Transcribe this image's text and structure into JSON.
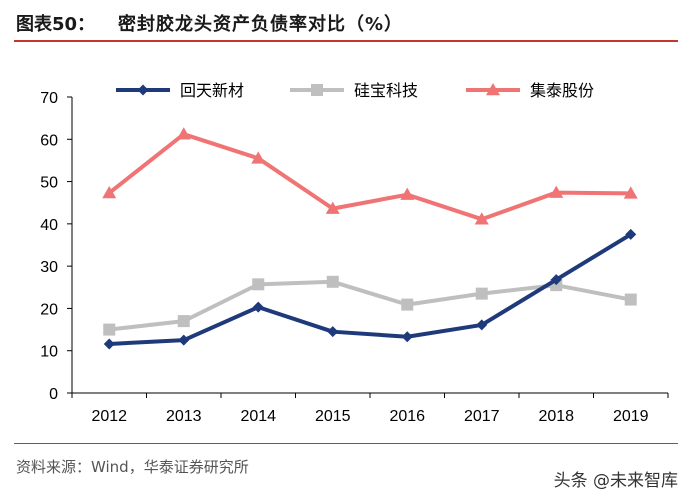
{
  "header": {
    "figure_label": "图表50：",
    "title": "密封胶龙头资产负债率对比（%）"
  },
  "footer": {
    "source": "资料来源：Wind，华泰证券研究所",
    "watermark": "头条 @未来智库"
  },
  "chart_data": {
    "type": "line",
    "title": "密封胶龙头资产负债率对比（%）",
    "xlabel": "",
    "ylabel": "",
    "categories": [
      "2012",
      "2013",
      "2014",
      "2015",
      "2016",
      "2017",
      "2018",
      "2019"
    ],
    "ylim": [
      0,
      70
    ],
    "yticks": [
      0,
      10,
      20,
      30,
      40,
      50,
      60,
      70
    ],
    "grid": false,
    "legend_position": "top",
    "series": [
      {
        "name": "回天新材",
        "color": "#1f3a7a",
        "marker": "diamond",
        "values": [
          11.6,
          12.5,
          20.3,
          14.5,
          13.3,
          16.1,
          26.8,
          37.5
        ]
      },
      {
        "name": "硅宝科技",
        "color": "#bfbfbf",
        "marker": "square",
        "values": [
          15.0,
          17.0,
          25.7,
          26.3,
          20.9,
          23.5,
          25.5,
          22.1
        ]
      },
      {
        "name": "集泰股份",
        "color": "#f07474",
        "marker": "triangle",
        "values": [
          47.3,
          61.2,
          55.5,
          43.6,
          46.9,
          41.1,
          47.4,
          47.2
        ]
      }
    ]
  }
}
